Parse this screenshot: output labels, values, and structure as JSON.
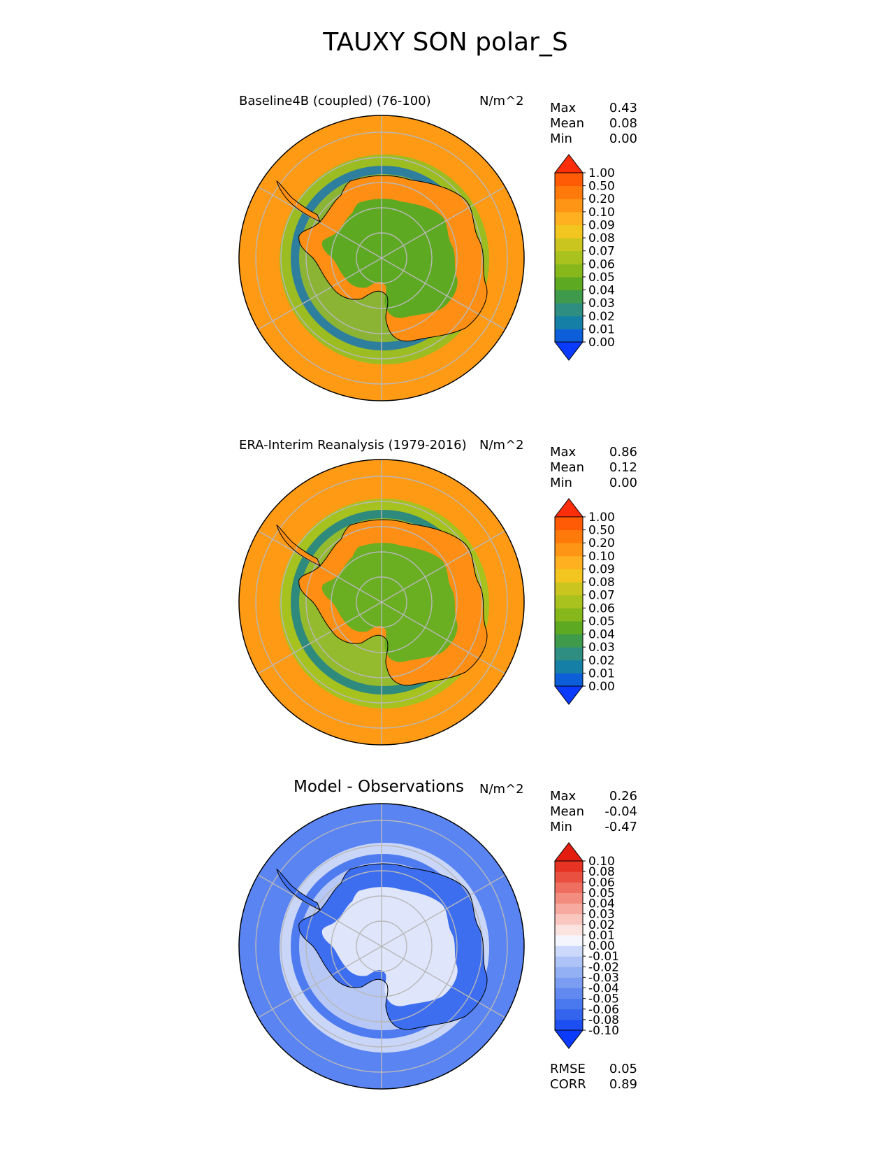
{
  "figure": {
    "title": "TAUXY SON polar_S"
  },
  "chart_data": [
    {
      "type": "heatmap",
      "projection": "south-polar-stereographic",
      "title": "Baseline4B (coupled) (76-100)",
      "units": "N/m^2",
      "stats": {
        "max_label": "Max",
        "max": "0.43",
        "mean_label": "Mean",
        "mean": "0.08",
        "min_label": "Min",
        "min": "0.00"
      },
      "colorbar": {
        "levels": [
          "0.00",
          "0.01",
          "0.02",
          "0.03",
          "0.04",
          "0.05",
          "0.06",
          "0.07",
          "0.08",
          "0.09",
          "0.10",
          "0.20",
          "0.50",
          "1.00"
        ],
        "colors": [
          "#0a3bff",
          "#0c5ed9",
          "#157fa6",
          "#2e8e82",
          "#3f9a4b",
          "#5ea922",
          "#86b81c",
          "#a9c21d",
          "#cbc51f",
          "#f2c61e",
          "#ffb020",
          "#ff9514",
          "#ff7a0a",
          "#ff5a05",
          "#ff2e0a"
        ],
        "extend": "both"
      },
      "field_colors": {
        "ocean_far": "#ff9a14",
        "ocean_band": "#9bbd22",
        "ocean_trough": "#2e7f9e",
        "interior": "#5ea922",
        "coast": "#ff8f14"
      }
    },
    {
      "type": "heatmap",
      "projection": "south-polar-stereographic",
      "title": "ERA-Interim Reanalysis (1979-2016)",
      "units": "N/m^2",
      "stats": {
        "max_label": "Max",
        "max": "0.86",
        "mean_label": "Mean",
        "mean": "0.12",
        "min_label": "Min",
        "min": "0.00"
      },
      "colorbar": {
        "levels": [
          "0.00",
          "0.01",
          "0.02",
          "0.03",
          "0.04",
          "0.05",
          "0.06",
          "0.07",
          "0.08",
          "0.09",
          "0.10",
          "0.20",
          "0.50",
          "1.00"
        ],
        "colors": [
          "#0a3bff",
          "#0c5ed9",
          "#157fa6",
          "#2e8e82",
          "#3f9a4b",
          "#5ea922",
          "#86b81c",
          "#a9c21d",
          "#cbc51f",
          "#f2c61e",
          "#ffb020",
          "#ff9514",
          "#ff7a0a",
          "#ff5a05",
          "#ff2e0a"
        ],
        "extend": "both"
      },
      "field_colors": {
        "ocean_far": "#ff9a14",
        "ocean_band": "#a6c21e",
        "ocean_trough": "#2f8a7e",
        "interior": "#6aae22",
        "coast": "#ff8f14"
      }
    },
    {
      "type": "heatmap",
      "projection": "south-polar-stereographic",
      "title": "Model - Observations",
      "units": "N/m^2",
      "stats": {
        "max_label": "Max",
        "max": "0.26",
        "mean_label": "Mean",
        "mean": "-0.04",
        "min_label": "Min",
        "min": "-0.47",
        "rmse_label": "RMSE",
        "rmse": "0.05",
        "corr_label": "CORR",
        "corr": "0.89"
      },
      "colorbar": {
        "levels": [
          "-0.10",
          "-0.08",
          "-0.06",
          "-0.05",
          "-0.04",
          "-0.03",
          "-0.02",
          "-0.01",
          "0.00",
          "0.01",
          "0.02",
          "0.03",
          "0.04",
          "0.05",
          "0.06",
          "0.08",
          "0.10"
        ],
        "colors": [
          "#0a3bff",
          "#1d4ef2",
          "#3464ee",
          "#4a78ef",
          "#6189f0",
          "#7a9df2",
          "#93b0f4",
          "#aec4f7",
          "#ccd9fa",
          "#f4f5fd",
          "#fbe3e0",
          "#f9c7c0",
          "#f6aaa0",
          "#f28d80",
          "#ee6f60",
          "#ea5040",
          "#e63322",
          "#e31e10"
        ],
        "extend": "both"
      },
      "field_colors": {
        "ocean_far": "#5a84f2",
        "ocean_band": "#c9d6f8",
        "ocean_trough": "#4f7bf0",
        "interior": "#dfe6fb",
        "coast": "#3d6ef0"
      }
    }
  ]
}
